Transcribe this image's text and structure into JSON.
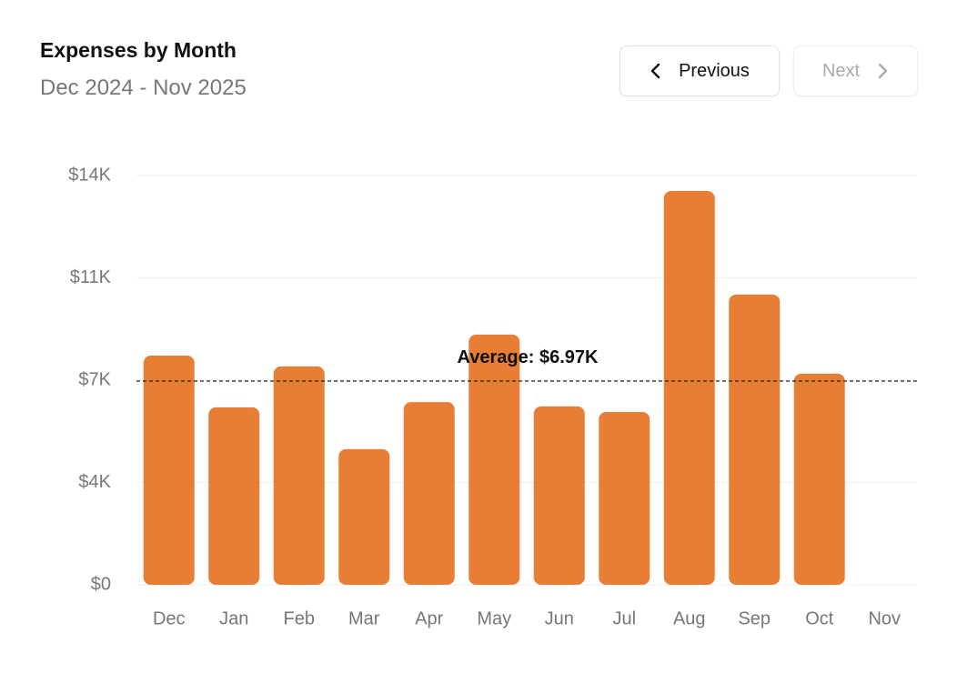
{
  "header": {
    "title": "Expenses by Month",
    "subtitle": "Dec 2024 - Nov 2025"
  },
  "controls": {
    "previous": "Previous",
    "next": "Next"
  },
  "chart_data": {
    "type": "bar",
    "categories": [
      "Dec",
      "Jan",
      "Feb",
      "Mar",
      "Apr",
      "May",
      "Jun",
      "Jul",
      "Aug",
      "Sep",
      "Oct",
      "Nov"
    ],
    "values": [
      7840,
      6070,
      7470,
      4640,
      6250,
      8560,
      6100,
      5910,
      13470,
      9930,
      7220,
      null
    ],
    "color": "#e87e35",
    "ylim": [
      0,
      14000
    ],
    "yticks": [
      {
        "value": 0,
        "label": "$0"
      },
      {
        "value": 3500,
        "label": "$4K"
      },
      {
        "value": 7000,
        "label": "$7K"
      },
      {
        "value": 10500,
        "label": "$11K"
      },
      {
        "value": 14000,
        "label": "$14K"
      }
    ],
    "grid": true,
    "average": {
      "value": 6970,
      "label": "Average: $6.97K"
    }
  }
}
